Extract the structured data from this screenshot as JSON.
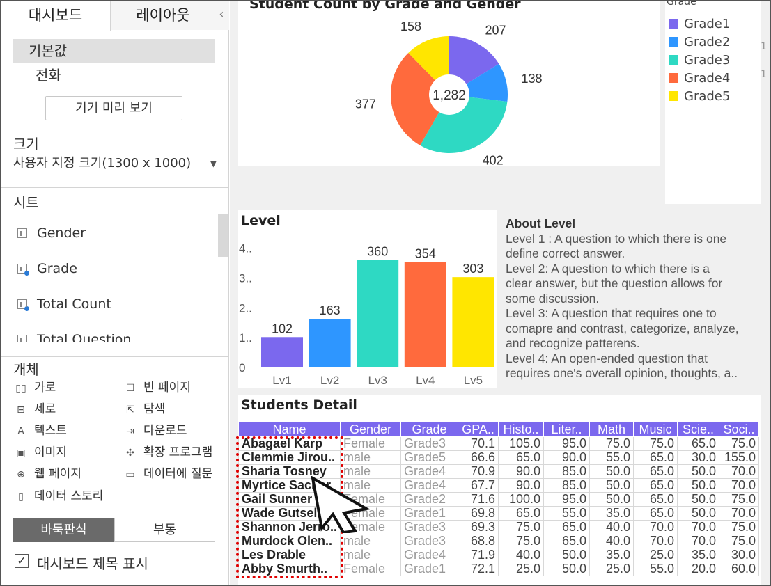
{
  "left_panel": {
    "tabs": [
      "대시보드",
      "레이아웃"
    ],
    "collapse_glyph": "‹",
    "device": {
      "default_label": "기본값",
      "phone_label": "전화",
      "preview_button": "기기 미리 보기"
    },
    "size": {
      "title": "크기",
      "value": "사용자 지정 크기(1300 x 1000)"
    },
    "sheets": {
      "title": "시트",
      "items": [
        "Gender",
        "Grade",
        "Total Count",
        "Total Question"
      ]
    },
    "objects": {
      "title": "개체",
      "items": [
        {
          "label": "가로",
          "icon": "horizontal-container-icon"
        },
        {
          "label": "빈 페이지",
          "icon": "blank-page-icon"
        },
        {
          "label": "세로",
          "icon": "vertical-container-icon"
        },
        {
          "label": "탐색",
          "icon": "navigation-icon"
        },
        {
          "label": "텍스트",
          "icon": "text-icon"
        },
        {
          "label": "다운로드",
          "icon": "download-icon"
        },
        {
          "label": "이미지",
          "icon": "image-icon"
        },
        {
          "label": "확장 프로그램",
          "icon": "extension-icon"
        },
        {
          "label": "웹 페이지",
          "icon": "web-page-icon"
        },
        {
          "label": "데이터에 질문",
          "icon": "ask-data-icon"
        },
        {
          "label": "데이터 스토리",
          "icon": "data-story-icon"
        }
      ]
    },
    "layout_toggle": {
      "tiled": "바둑판식",
      "floating": "부동"
    },
    "show_title": {
      "label": "대시보드 제목 표시",
      "checked": true,
      "check_glyph": "✓"
    }
  },
  "colors": {
    "grade1": "#7b68ee",
    "grade2": "#2e96ff",
    "grade3": "#2ed9c3",
    "grade4": "#ff6a3d",
    "grade5": "#ffe600",
    "header": "#7b68ee",
    "selection": "#e00000"
  },
  "pie": {
    "title": "Student Count by Grade and Gender",
    "center_label": "1,282",
    "legend_title": "Grade",
    "edge_marks": [
      "1",
      "1"
    ]
  },
  "about": {
    "title": "About Level",
    "lines": [
      "Level 1 : A question to which there is one",
      "define correct answer.",
      "Level 2:  A question to which there is a",
      "clear answer, but the question allows for",
      "some discussion.",
      "Level 3: A question that requires one to",
      "comapre and contrast, categorize, analyze,",
      "and recognize patterens.",
      "Level 4: An open-ended question that",
      "requires one's overall opinion, thoughts, a.."
    ]
  },
  "table": {
    "title": "Students Detail",
    "columns": [
      "Name",
      "Gender",
      "Grade",
      "GPA..",
      "Histo..",
      "Liter..",
      "Math",
      "Music",
      "Scie..",
      "Soci.."
    ],
    "rows": [
      [
        "Abagael Karp",
        "Female",
        "Grade3",
        "70.1",
        "105.0",
        "95.0",
        "75.0",
        "75.0",
        "65.0",
        "75.0"
      ],
      [
        "Clemmie Jirou..",
        "male",
        "Grade5",
        "66.6",
        "65.0",
        "90.0",
        "55.0",
        "65.0",
        "30.0",
        "155.0"
      ],
      [
        "Sharia Tosney",
        "male",
        "Grade4",
        "70.9",
        "90.0",
        "85.0",
        "50.0",
        "65.0",
        "50.0",
        "70.0"
      ],
      [
        "Myrtice Sacher",
        "male",
        "Grade4",
        "67.7",
        "90.0",
        "85.0",
        "50.0",
        "65.0",
        "50.0",
        "70.0"
      ],
      [
        "Gail Sunner",
        "Female",
        "Grade2",
        "71.6",
        "100.0",
        "95.0",
        "50.0",
        "65.0",
        "50.0",
        "75.0"
      ],
      [
        "Wade Gutsell",
        "Female",
        "Grade1",
        "69.8",
        "65.0",
        "55.0",
        "35.0",
        "65.0",
        "50.0",
        "70.0"
      ],
      [
        "Shannon Jerro..",
        "Female",
        "Grade3",
        "69.3",
        "75.0",
        "65.0",
        "40.0",
        "70.0",
        "70.0",
        "75.0"
      ],
      [
        "Murdock Olen..",
        "male",
        "Grade3",
        "68.8",
        "75.0",
        "65.0",
        "40.0",
        "70.0",
        "70.0",
        "75.0"
      ],
      [
        "Les Drable",
        "male",
        "Grade4",
        "71.9",
        "40.0",
        "50.0",
        "35.0",
        "25.0",
        "35.0",
        "30.0"
      ],
      [
        "Abby Smurth..",
        "Female",
        "Grade1",
        "72.1",
        "25.0",
        "50.0",
        "25.0",
        "55.0",
        "20.0",
        "60.0"
      ]
    ]
  },
  "chart_data": [
    {
      "type": "pie",
      "title": "Student Count by Grade and Gender",
      "legend_title": "Grade",
      "legend_position": "right",
      "center_label": "1,282",
      "categories": [
        "Grade1",
        "Grade2",
        "Grade3",
        "Grade4",
        "Grade5"
      ],
      "values": [
        207,
        138,
        402,
        377,
        158
      ],
      "colors": [
        "#7b68ee",
        "#2e96ff",
        "#2ed9c3",
        "#ff6a3d",
        "#ffe600"
      ]
    },
    {
      "type": "bar",
      "title": "Level",
      "categories": [
        "Lv1",
        "Lv2",
        "Lv3",
        "Lv4",
        "Lv5"
      ],
      "values": [
        102,
        163,
        360,
        354,
        303
      ],
      "y_ticks": [
        "0",
        "1..",
        "2..",
        "3..",
        "4.."
      ],
      "y_tick_values": [
        0,
        100,
        200,
        300,
        400
      ],
      "ylim": [
        0,
        420
      ],
      "colors": [
        "#7b68ee",
        "#2e96ff",
        "#2ed9c3",
        "#ff6a3d",
        "#ffe600"
      ]
    }
  ]
}
